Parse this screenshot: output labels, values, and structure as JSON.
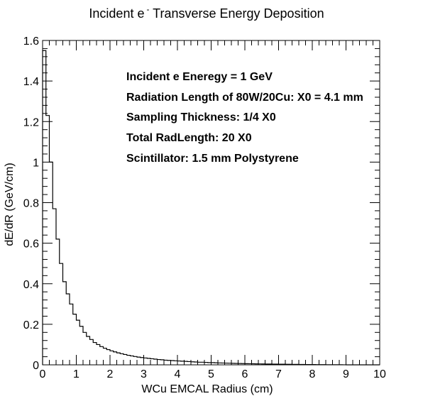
{
  "chart_data": {
    "type": "histogram",
    "title_main": "Incident e",
    "title_sup": "-",
    "title_rest": " Transverse Energy Deposition",
    "xlabel": "WCu EMCAL Radius (cm)",
    "ylabel": "dE/dR (GeV/cm)",
    "xlim": [
      0,
      10
    ],
    "ylim": [
      0,
      1.6
    ],
    "x_major_ticks": [
      0,
      1,
      2,
      3,
      4,
      5,
      6,
      7,
      8,
      9,
      10
    ],
    "y_major_ticks": [
      0,
      0.2,
      0.4,
      0.6,
      0.8,
      1,
      1.2,
      1.4,
      1.6
    ],
    "x_tick_labels": [
      "0",
      "1",
      "2",
      "3",
      "4",
      "5",
      "6",
      "7",
      "8",
      "9",
      "10"
    ],
    "y_tick_labels": [
      "0",
      "0.2",
      "0.4",
      "0.6",
      "0.8",
      "1",
      "1.2",
      "1.4",
      "1.6"
    ],
    "grid": false,
    "bin_width": 0.1,
    "bin_values": [
      1.55,
      1.23,
      1.0,
      0.77,
      0.62,
      0.5,
      0.41,
      0.35,
      0.3,
      0.25,
      0.22,
      0.19,
      0.16,
      0.14,
      0.125,
      0.11,
      0.1,
      0.09,
      0.082,
      0.075,
      0.069,
      0.064,
      0.059,
      0.055,
      0.051,
      0.047,
      0.044,
      0.041,
      0.038,
      0.036,
      0.034,
      0.032,
      0.03,
      0.028,
      0.026,
      0.025,
      0.023,
      0.022,
      0.021,
      0.02,
      0.019,
      0.018,
      0.017,
      0.016,
      0.015,
      0.014,
      0.013,
      0.013,
      0.012,
      0.011,
      0.011,
      0.01,
      0.0095,
      0.009,
      0.0085,
      0.008,
      0.0075,
      0.007,
      0.0066,
      0.0062,
      0.0058,
      0.0055,
      0.0052,
      0.0049,
      0.0046,
      0.0043,
      0.004,
      0.0038,
      0.0036,
      0.0034,
      0.0032,
      0.003,
      0.0028,
      0.0026,
      0.0024,
      0.0022,
      0.002,
      0.0018,
      0.0016,
      0.0014,
      0.0012,
      0.001,
      0.0009,
      0.0008,
      0.0007,
      0.0006,
      0.0005,
      0.0004,
      0.0003,
      0.0002,
      0.0,
      0.0,
      0.0,
      0.0,
      0.0,
      0.0,
      0.0,
      0.0,
      0.0,
      0.0
    ],
    "annotations": [
      "Incident e Eneregy = 1 GeV",
      "Radiation Length of 80W/20Cu: X0 = 4.1 mm",
      "Sampling Thickness: 1/4 X0",
      "Total RadLength: 20 X0",
      "Scintillator: 1.5 mm Polystyrene"
    ],
    "line_color": "#000000"
  }
}
